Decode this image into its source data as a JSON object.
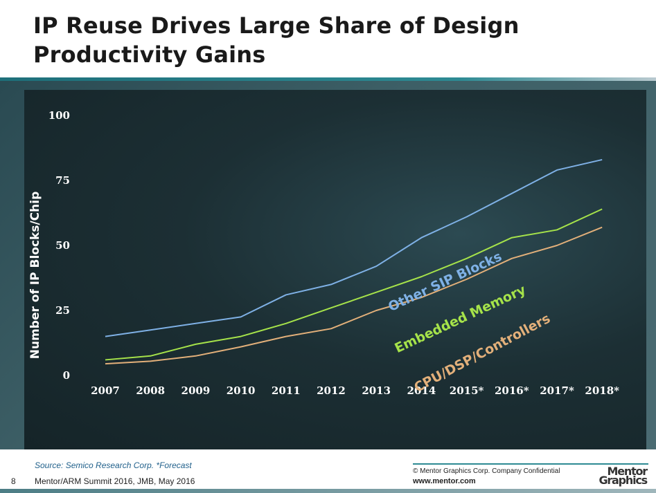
{
  "slide": {
    "title": "IP Reuse Drives Large Share of Design Productivity Gains",
    "source": "Source: Semico Research Corp.   *Forecast",
    "page_number": "8",
    "footer_meta": "Mentor/ARM Summit 2016, JMB, May 2016",
    "copyright": "© Mentor Graphics Corp. Company Confidential",
    "url": "www.mentor.com",
    "logo_text_line1": "Mentor",
    "logo_text_line2": "Graphics"
  },
  "chart_data": {
    "type": "line",
    "title": "",
    "xlabel": "",
    "ylabel": "Number of IP Blocks/Chip",
    "ylim": [
      0,
      100
    ],
    "yticks": [
      0,
      25,
      50,
      75,
      100
    ],
    "categories": [
      "2007",
      "2008",
      "2009",
      "2010",
      "2011",
      "2012",
      "2013",
      "2014",
      "2015*",
      "2016*",
      "2017*",
      "2018*"
    ],
    "grid": false,
    "legend": "none (series labeled inline)",
    "series": [
      {
        "name": "Other SIP Blocks",
        "color": "#7fb1e6",
        "values": [
          15,
          17.5,
          20,
          22.5,
          31,
          35,
          42,
          53,
          61,
          70,
          79,
          83
        ]
      },
      {
        "name": "Embedded Memory",
        "color": "#a6e34a",
        "values": [
          6,
          7.5,
          12,
          15,
          20,
          26,
          32,
          38,
          45,
          53,
          56,
          64
        ]
      },
      {
        "name": "CPU/DSP/Controllers",
        "color": "#e3b07a",
        "values": [
          4.5,
          5.5,
          7.5,
          11,
          15,
          18,
          25,
          30,
          37,
          45,
          50,
          57
        ]
      }
    ]
  }
}
